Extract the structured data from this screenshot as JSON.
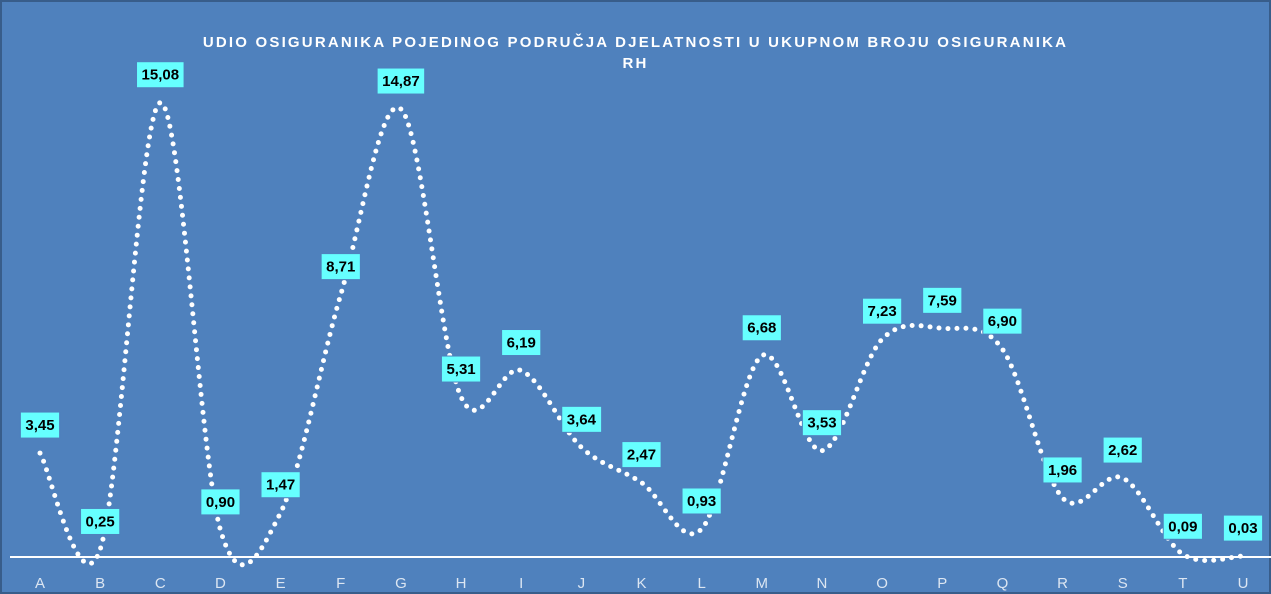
{
  "chart_data": {
    "type": "line",
    "title": "UDIO OSIGURANIKA POJEDINOG PODRUČJA DJELATNOSTI U UKUPNOM BROJU OSIGURANIKA RH",
    "categories": [
      "A",
      "B",
      "C",
      "D",
      "E",
      "F",
      "G",
      "H",
      "I",
      "J",
      "K",
      "L",
      "M",
      "N",
      "O",
      "P",
      "Q",
      "R",
      "S",
      "T",
      "U"
    ],
    "values": [
      3.45,
      0.25,
      15.08,
      0.9,
      1.47,
      8.71,
      14.87,
      5.31,
      6.19,
      3.64,
      2.47,
      0.93,
      6.68,
      3.53,
      7.23,
      7.59,
      6.9,
      1.96,
      2.62,
      0.09,
      0.03
    ],
    "value_labels": [
      "3,45",
      "0,25",
      "15,08",
      "0,90",
      "1,47",
      "8,71",
      "14,87",
      "5,31",
      "6,19",
      "3,64",
      "2,47",
      "0,93",
      "6,68",
      "3,53",
      "7,23",
      "7,59",
      "6,90",
      "1,96",
      "2,62",
      "0,09",
      "0,03"
    ],
    "color": "#ffffff",
    "ylim": [
      0,
      16
    ]
  }
}
